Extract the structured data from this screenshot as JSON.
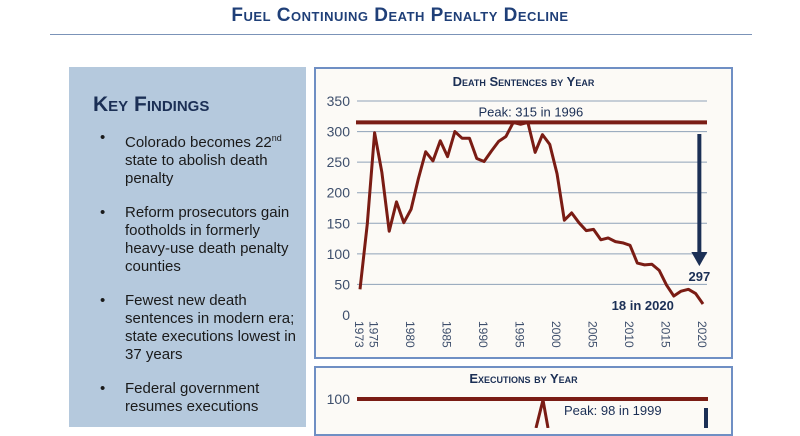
{
  "page": {
    "title": "Fuel Continuing Death Penalty Decline"
  },
  "key_findings": {
    "heading": "Key Findings",
    "bullet_glyph": "•",
    "items": [
      {
        "pre": "Colorado becomes 22",
        "sup": "nd",
        "post": " state to abolish death penalty"
      },
      {
        "pre": "Reform prosecutors gain footholds in formerly heavy-use death penalty counties",
        "sup": "",
        "post": ""
      },
      {
        "pre": "Fewest new death sentences in modern era; state executions lowest in 37 years",
        "sup": "",
        "post": ""
      },
      {
        "pre": "Federal government resumes executions",
        "sup": "",
        "post": ""
      }
    ]
  },
  "colors": {
    "title": "#1f3f78",
    "panel_bg": "#b5c9dd",
    "line": "#7a1c14",
    "arrow": "#1b2f55",
    "chart_border": "#6f8fc4",
    "grid": "#8fa2b8"
  },
  "chart_data": [
    {
      "type": "line",
      "title": "Death Sentences by Year",
      "xlabel": "",
      "ylabel": "",
      "ylim": [
        0,
        350
      ],
      "yticks": [
        0,
        50,
        100,
        150,
        200,
        250,
        300,
        350
      ],
      "xticks": [
        1973,
        1975,
        1980,
        1985,
        1990,
        1995,
        2000,
        2005,
        2010,
        2015,
        2020
      ],
      "grid": true,
      "x": [
        1973,
        1974,
        1975,
        1976,
        1977,
        1978,
        1979,
        1980,
        1981,
        1982,
        1983,
        1984,
        1985,
        1986,
        1987,
        1988,
        1989,
        1990,
        1991,
        1992,
        1993,
        1994,
        1995,
        1996,
        1997,
        1998,
        1999,
        2000,
        2001,
        2002,
        2003,
        2004,
        2005,
        2006,
        2007,
        2008,
        2009,
        2010,
        2011,
        2012,
        2013,
        2014,
        2015,
        2016,
        2017,
        2018,
        2019,
        2020
      ],
      "values": [
        42,
        149,
        298,
        233,
        137,
        185,
        151,
        173,
        223,
        267,
        252,
        285,
        259,
        300,
        289,
        289,
        256,
        251,
        268,
        284,
        292,
        315,
        312,
        315,
        266,
        295,
        279,
        231,
        155,
        167,
        151,
        138,
        140,
        123,
        126,
        120,
        118,
        114,
        85,
        82,
        83,
        73,
        49,
        31,
        39,
        42,
        35,
        18
      ],
      "peak_line": 315,
      "annotations": {
        "peak": "Peak: 315 in 1996",
        "drop": "297",
        "latest": "18 in 2020"
      }
    },
    {
      "type": "line",
      "title": "Executions by Year",
      "yticks": [
        100
      ],
      "peak_line": 98,
      "annotations": {
        "peak": "Peak: 98 in 1999"
      }
    }
  ]
}
